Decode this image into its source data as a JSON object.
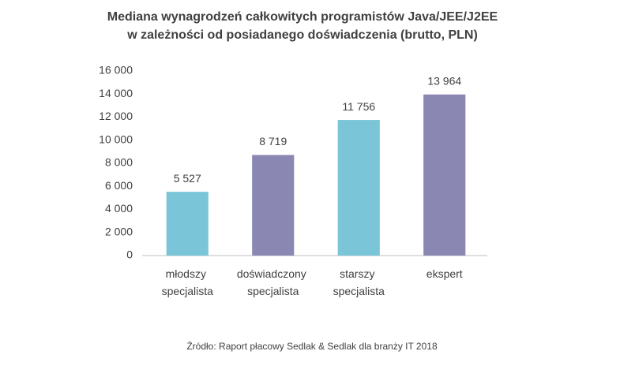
{
  "chart_data": {
    "type": "bar",
    "title": "Mediana wynagrodzeń całkowitych programistów Java/JEE/J2EE",
    "subtitle": "w zależności od posiadanego doświadczenia (brutto, PLN)",
    "categories": [
      "młodszy specjalista",
      "doświadczony specjalista",
      "starszy specjalista",
      "ekspert"
    ],
    "values": [
      5527,
      8719,
      11756,
      13964
    ],
    "value_labels": [
      "5 527",
      "8 719",
      "11 756",
      "13 964"
    ],
    "colors": [
      "#7ac5d8",
      "#8b87b3",
      "#7ac5d8",
      "#8b87b3"
    ],
    "ylim": [
      0,
      16000
    ],
    "yticks": [
      0,
      {
        "value": 2000,
        "label": "2 000"
      },
      {
        "value": 4000,
        "label": "4 000"
      },
      {
        "value": 6000,
        "label": "6 000"
      },
      {
        "value": 8000,
        "label": "8 000"
      },
      {
        "value": 10000,
        "label": "10 000"
      },
      {
        "value": 12000,
        "label": "12 000"
      },
      {
        "value": 14000,
        "label": "14 000"
      },
      {
        "value": 16000,
        "label": "16 000"
      }
    ],
    "grid": false,
    "source": "Źródło: Raport płacowy Sedlak & Sedlak dla branży IT 2018"
  }
}
